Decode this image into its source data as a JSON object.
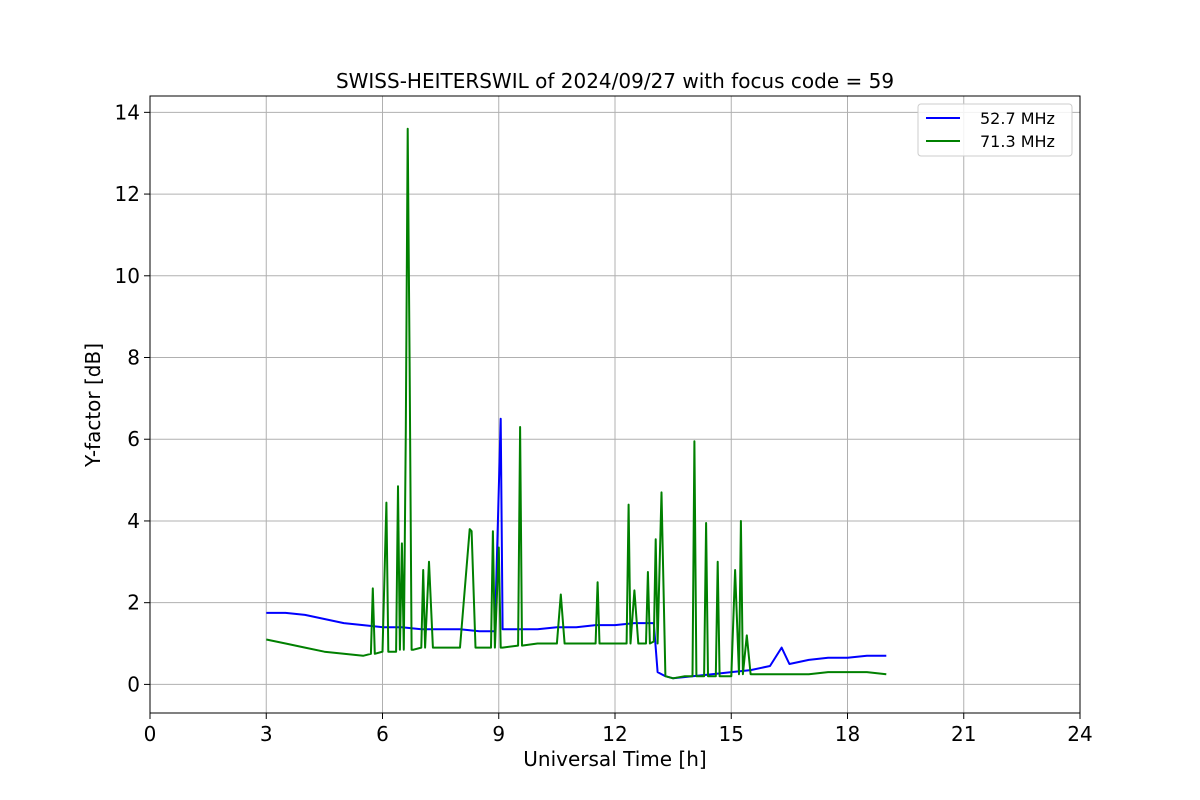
{
  "chart_data": {
    "type": "line",
    "title": "SWISS-HEITERSWIL of 2024/09/27 with focus code = 59",
    "xlabel": "Universal Time [h]",
    "ylabel": "Y-factor [dB]",
    "xlim": [
      0,
      24
    ],
    "ylim": [
      -0.7,
      14.4
    ],
    "xticks": [
      0,
      3,
      6,
      9,
      12,
      15,
      18,
      21,
      24
    ],
    "yticks": [
      0,
      2,
      4,
      6,
      8,
      10,
      12,
      14
    ],
    "grid": true,
    "legend": "top-right",
    "series": [
      {
        "name": "52.7 MHz",
        "color": "#0000ff",
        "x": [
          3.0,
          3.5,
          4.0,
          4.5,
          5.0,
          5.5,
          6.0,
          6.5,
          7.0,
          7.5,
          8.0,
          8.5,
          8.9,
          9.05,
          9.1,
          9.15,
          9.5,
          10.0,
          10.5,
          11.0,
          11.5,
          12.0,
          12.5,
          13.0,
          13.1,
          13.3,
          13.5,
          14.0,
          14.5,
          15.0,
          15.5,
          16.0,
          16.3,
          16.5,
          17.0,
          17.5,
          18.0,
          18.5,
          19.0
        ],
        "values": [
          1.75,
          1.75,
          1.7,
          1.6,
          1.5,
          1.45,
          1.4,
          1.4,
          1.35,
          1.35,
          1.35,
          1.3,
          1.3,
          6.5,
          1.35,
          1.35,
          1.35,
          1.35,
          1.4,
          1.4,
          1.45,
          1.45,
          1.5,
          1.5,
          0.3,
          0.2,
          0.15,
          0.2,
          0.25,
          0.3,
          0.35,
          0.45,
          0.9,
          0.5,
          0.6,
          0.65,
          0.65,
          0.7,
          0.7
        ]
      },
      {
        "name": "71.3 MHz",
        "color": "#008000",
        "x": [
          3.0,
          3.5,
          4.0,
          4.5,
          5.0,
          5.5,
          5.7,
          5.75,
          5.8,
          6.0,
          6.1,
          6.15,
          6.2,
          6.35,
          6.4,
          6.45,
          6.5,
          6.55,
          6.6,
          6.65,
          6.7,
          6.75,
          6.8,
          7.0,
          7.05,
          7.1,
          7.2,
          7.3,
          7.5,
          8.0,
          8.25,
          8.3,
          8.4,
          8.8,
          8.85,
          8.9,
          9.0,
          9.05,
          9.1,
          9.5,
          9.55,
          9.6,
          10.0,
          10.5,
          10.6,
          10.7,
          11.0,
          11.5,
          11.55,
          11.6,
          12.0,
          12.3,
          12.35,
          12.4,
          12.5,
          12.6,
          12.8,
          12.85,
          12.9,
          13.0,
          13.05,
          13.1,
          13.2,
          13.3,
          13.5,
          13.8,
          14.0,
          14.05,
          14.1,
          14.3,
          14.35,
          14.4,
          14.6,
          14.65,
          14.7,
          15.0,
          15.1,
          15.2,
          15.25,
          15.3,
          15.4,
          15.5,
          16.0,
          16.5,
          17.0,
          17.5,
          18.0,
          18.5,
          19.0
        ],
        "values": [
          1.1,
          1.0,
          0.9,
          0.8,
          0.75,
          0.7,
          0.75,
          2.35,
          0.75,
          0.8,
          4.45,
          0.8,
          0.8,
          0.8,
          4.85,
          0.85,
          3.45,
          0.85,
          6.2,
          13.6,
          7.9,
          0.85,
          0.85,
          0.9,
          2.8,
          0.9,
          3.0,
          0.9,
          0.9,
          0.9,
          3.8,
          3.75,
          0.9,
          0.9,
          3.75,
          0.9,
          3.35,
          0.9,
          0.9,
          0.95,
          6.3,
          0.95,
          1.0,
          1.0,
          2.2,
          1.0,
          1.0,
          1.0,
          2.5,
          1.0,
          1.0,
          1.0,
          4.4,
          1.0,
          2.3,
          1.0,
          1.0,
          2.75,
          1.0,
          1.05,
          3.55,
          1.0,
          4.7,
          0.2,
          0.15,
          0.2,
          0.2,
          5.95,
          0.2,
          0.2,
          3.95,
          0.2,
          0.2,
          3.0,
          0.2,
          0.2,
          2.8,
          0.25,
          4.0,
          0.25,
          1.2,
          0.25,
          0.25,
          0.25,
          0.25,
          0.3,
          0.3,
          0.3,
          0.25
        ]
      }
    ]
  }
}
